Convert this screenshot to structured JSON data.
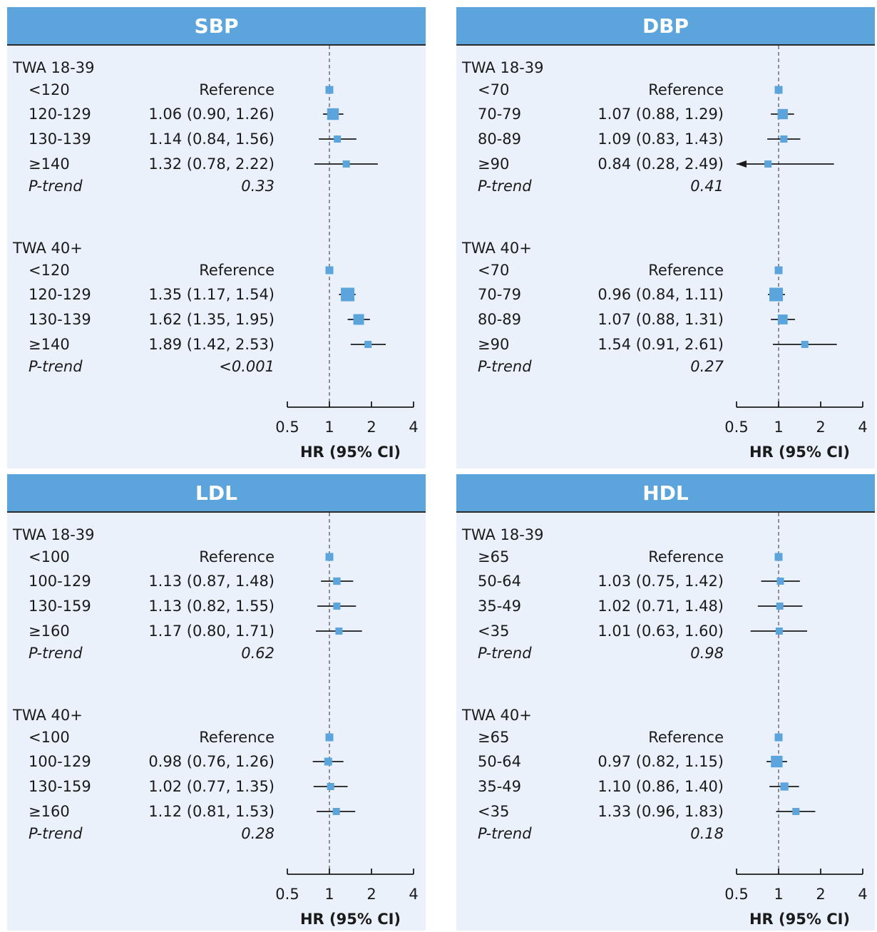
{
  "chart_data": [
    {
      "type": "forest",
      "title": "SBP",
      "xlabel": "HR (95% CI)",
      "xscale": "log2",
      "xlim": [
        0.5,
        4
      ],
      "xticks": [
        "0.5",
        "1",
        "2",
        "4"
      ],
      "reference_line": 1,
      "groups": [
        {
          "label": "TWA 18-39",
          "rows": [
            {
              "label": "<120",
              "text": "Reference",
              "hr": 1,
              "lo": null,
              "hi": null
            },
            {
              "label": "120-129",
              "text": "1.06 (0.90, 1.26)",
              "hr": 1.06,
              "lo": 0.9,
              "hi": 1.26
            },
            {
              "label": "130-139",
              "text": "1.14 (0.84, 1.56)",
              "hr": 1.14,
              "lo": 0.84,
              "hi": 1.56
            },
            {
              "label": "≥140",
              "text": "1.32 (0.78, 2.22)",
              "hr": 1.32,
              "lo": 0.78,
              "hi": 2.22
            }
          ],
          "ptrend_label": "P-trend",
          "ptrend": "0.33"
        },
        {
          "label": "TWA 40+",
          "rows": [
            {
              "label": "<120",
              "text": "Reference",
              "hr": 1,
              "lo": null,
              "hi": null
            },
            {
              "label": "120-129",
              "text": "1.35 (1.17, 1.54)",
              "hr": 1.35,
              "lo": 1.17,
              "hi": 1.54
            },
            {
              "label": "130-139",
              "text": "1.62 (1.35, 1.95)",
              "hr": 1.62,
              "lo": 1.35,
              "hi": 1.95
            },
            {
              "label": "≥140",
              "text": "1.89 (1.42, 2.53)",
              "hr": 1.89,
              "lo": 1.42,
              "hi": 2.53
            }
          ],
          "ptrend_label": "P-trend",
          "ptrend": "<0.001"
        }
      ]
    },
    {
      "type": "forest",
      "title": "DBP",
      "xlabel": "HR (95% CI)",
      "xscale": "log2",
      "xlim": [
        0.5,
        4
      ],
      "xticks": [
        "0.5",
        "1",
        "2",
        "4"
      ],
      "reference_line": 1,
      "groups": [
        {
          "label": "TWA 18-39",
          "rows": [
            {
              "label": "<70",
              "text": "Reference",
              "hr": 1,
              "lo": null,
              "hi": null
            },
            {
              "label": "70-79",
              "text": "1.07 (0.88, 1.29)",
              "hr": 1.07,
              "lo": 0.88,
              "hi": 1.29
            },
            {
              "label": "80-89",
              "text": "1.09 (0.83, 1.43)",
              "hr": 1.09,
              "lo": 0.83,
              "hi": 1.43
            },
            {
              "label": "≥90",
              "text": "0.84 (0.28, 2.49)",
              "hr": 0.84,
              "lo": 0.28,
              "hi": 2.49
            }
          ],
          "ptrend_label": "P-trend",
          "ptrend": "0.41"
        },
        {
          "label": "TWA 40+",
          "rows": [
            {
              "label": "<70",
              "text": "Reference",
              "hr": 1,
              "lo": null,
              "hi": null
            },
            {
              "label": "70-79",
              "text": "0.96 (0.84, 1.11)",
              "hr": 0.96,
              "lo": 0.84,
              "hi": 1.11
            },
            {
              "label": "80-89",
              "text": "1.07 (0.88, 1.31)",
              "hr": 1.07,
              "lo": 0.88,
              "hi": 1.31
            },
            {
              "label": "≥90",
              "text": "1.54 (0.91, 2.61)",
              "hr": 1.54,
              "lo": 0.91,
              "hi": 2.61
            }
          ],
          "ptrend_label": "P-trend",
          "ptrend": "0.27"
        }
      ]
    },
    {
      "type": "forest",
      "title": "LDL",
      "xlabel": "HR (95% CI)",
      "xscale": "log2",
      "xlim": [
        0.5,
        4
      ],
      "xticks": [
        "0.5",
        "1",
        "2",
        "4"
      ],
      "reference_line": 1,
      "groups": [
        {
          "label": "TWA 18-39",
          "rows": [
            {
              "label": "<100",
              "text": "Reference",
              "hr": 1,
              "lo": null,
              "hi": null
            },
            {
              "label": "100-129",
              "text": "1.13 (0.87, 1.48)",
              "hr": 1.13,
              "lo": 0.87,
              "hi": 1.48
            },
            {
              "label": "130-159",
              "text": "1.13 (0.82, 1.55)",
              "hr": 1.13,
              "lo": 0.82,
              "hi": 1.55
            },
            {
              "label": "≥160",
              "text": "1.17 (0.80, 1.71)",
              "hr": 1.17,
              "lo": 0.8,
              "hi": 1.71
            }
          ],
          "ptrend_label": "P-trend",
          "ptrend": "0.62"
        },
        {
          "label": "TWA 40+",
          "rows": [
            {
              "label": "<100",
              "text": "Reference",
              "hr": 1,
              "lo": null,
              "hi": null
            },
            {
              "label": "100-129",
              "text": "0.98 (0.76, 1.26)",
              "hr": 0.98,
              "lo": 0.76,
              "hi": 1.26
            },
            {
              "label": "130-159",
              "text": "1.02 (0.77, 1.35)",
              "hr": 1.02,
              "lo": 0.77,
              "hi": 1.35
            },
            {
              "label": "≥160",
              "text": "1.12 (0.81, 1.53)",
              "hr": 1.12,
              "lo": 0.81,
              "hi": 1.53
            }
          ],
          "ptrend_label": "P-trend",
          "ptrend": "0.28"
        }
      ]
    },
    {
      "type": "forest",
      "title": "HDL",
      "xlabel": "HR (95% CI)",
      "xscale": "log2",
      "xlim": [
        0.5,
        4
      ],
      "xticks": [
        "0.5",
        "1",
        "2",
        "4"
      ],
      "reference_line": 1,
      "groups": [
        {
          "label": "TWA 18-39",
          "rows": [
            {
              "label": "≥65",
              "text": "Reference",
              "hr": 1,
              "lo": null,
              "hi": null
            },
            {
              "label": "50-64",
              "text": "1.03 (0.75, 1.42)",
              "hr": 1.03,
              "lo": 0.75,
              "hi": 1.42
            },
            {
              "label": "35-49",
              "text": "1.02 (0.71, 1.48)",
              "hr": 1.02,
              "lo": 0.71,
              "hi": 1.48
            },
            {
              "label": "<35",
              "text": "1.01 (0.63, 1.60)",
              "hr": 1.01,
              "lo": 0.63,
              "hi": 1.6
            }
          ],
          "ptrend_label": "P-trend",
          "ptrend": "0.98"
        },
        {
          "label": "TWA 40+",
          "rows": [
            {
              "label": "≥65",
              "text": "Reference",
              "hr": 1,
              "lo": null,
              "hi": null
            },
            {
              "label": "50-64",
              "text": "0.97 (0.82, 1.15)",
              "hr": 0.97,
              "lo": 0.82,
              "hi": 1.15
            },
            {
              "label": "35-49",
              "text": "1.10 (0.86, 1.40)",
              "hr": 1.1,
              "lo": 0.86,
              "hi": 1.4
            },
            {
              "label": "<35",
              "text": "1.33 (0.96, 1.83)",
              "hr": 1.33,
              "lo": 0.96,
              "hi": 1.83
            }
          ],
          "ptrend_label": "P-trend",
          "ptrend": "0.18"
        }
      ]
    }
  ],
  "colors": {
    "header_bg": "#5ba4dc",
    "panel_bg": "#eaf1fb",
    "marker": "#5ba4dc",
    "reference_line": "#777777",
    "text": "#1a1a1a"
  }
}
